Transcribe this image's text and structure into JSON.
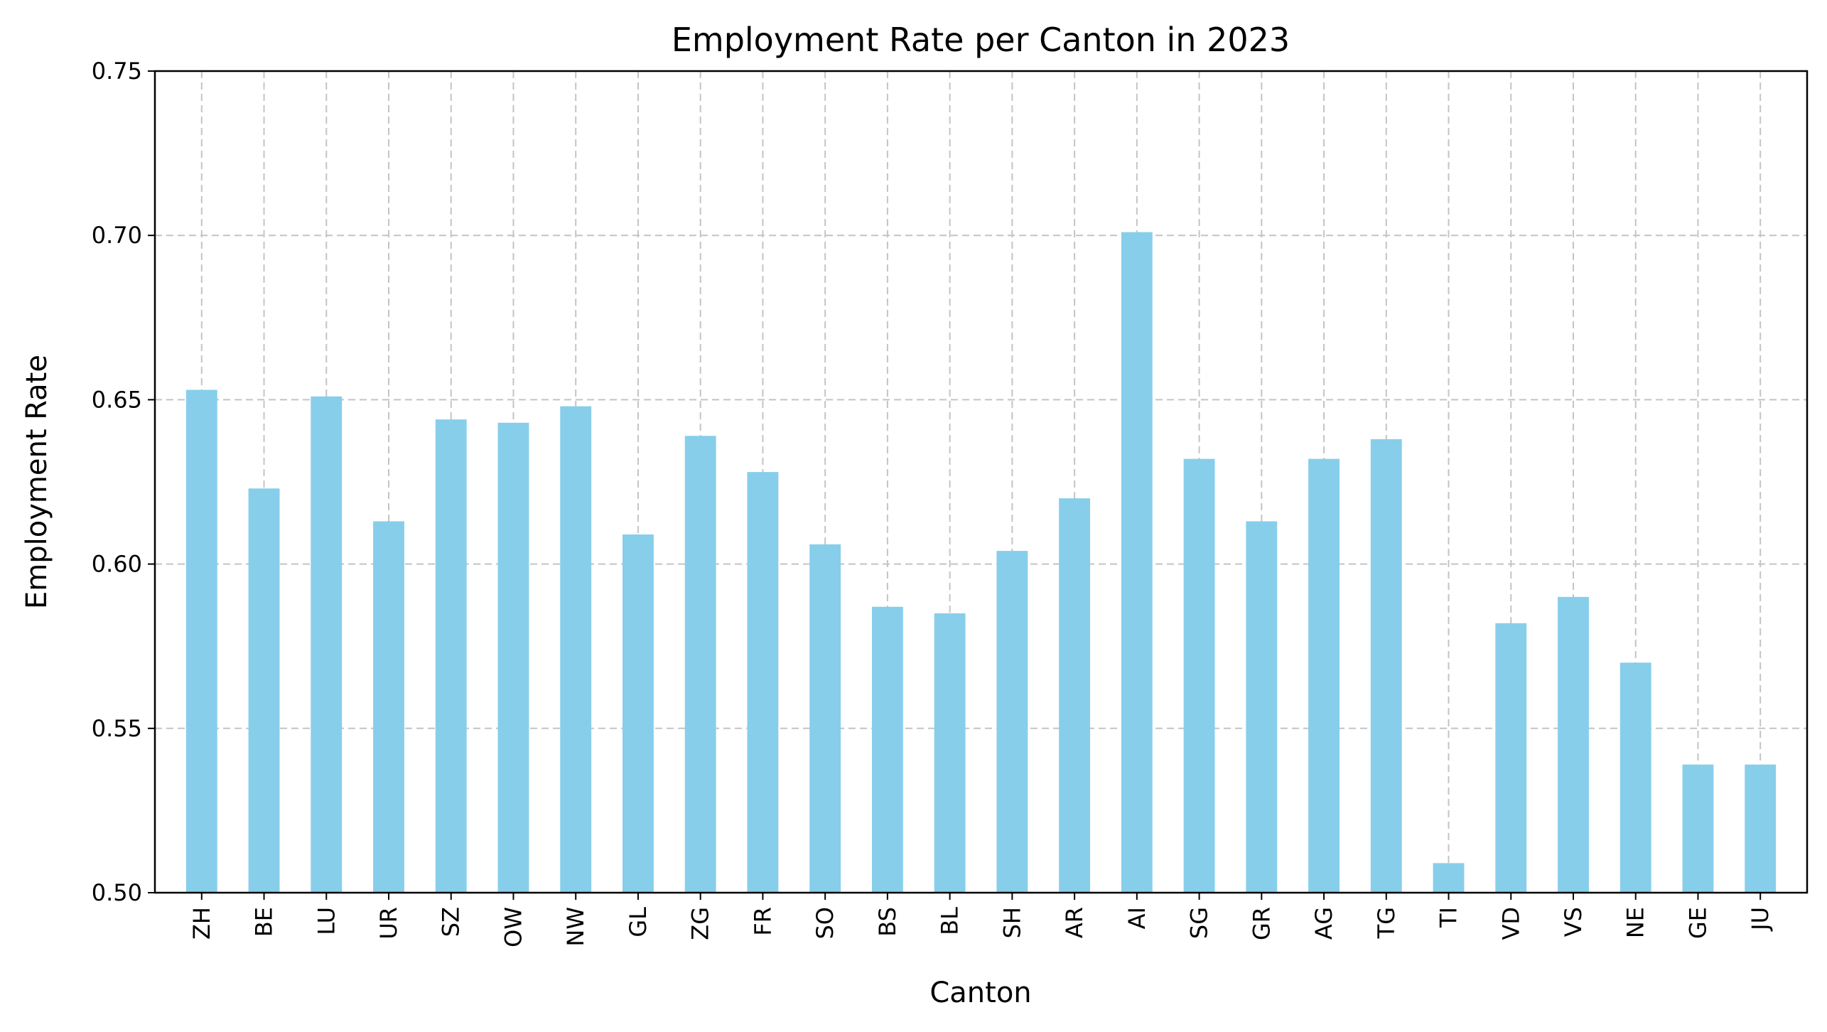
{
  "chart_data": {
    "type": "bar",
    "title": "Employment Rate per Canton in 2023",
    "xlabel": "Canton",
    "ylabel": "Employment Rate",
    "ylim": [
      0.5,
      0.75
    ],
    "yticks": [
      "0.50",
      "0.55",
      "0.60",
      "0.65",
      "0.70",
      "0.75"
    ],
    "grid": true,
    "bar_color": "#87ceeb",
    "categories": [
      "ZH",
      "BE",
      "LU",
      "UR",
      "SZ",
      "OW",
      "NW",
      "GL",
      "ZG",
      "FR",
      "SO",
      "BS",
      "BL",
      "SH",
      "AR",
      "AI",
      "SG",
      "GR",
      "AG",
      "TG",
      "TI",
      "VD",
      "VS",
      "NE",
      "GE",
      "JU"
    ],
    "values": [
      0.653,
      0.623,
      0.651,
      0.613,
      0.644,
      0.643,
      0.648,
      0.609,
      0.639,
      0.628,
      0.606,
      0.587,
      0.585,
      0.604,
      0.62,
      0.701,
      0.632,
      0.613,
      0.632,
      0.638,
      0.509,
      0.582,
      0.59,
      0.57,
      0.539,
      0.539
    ]
  }
}
